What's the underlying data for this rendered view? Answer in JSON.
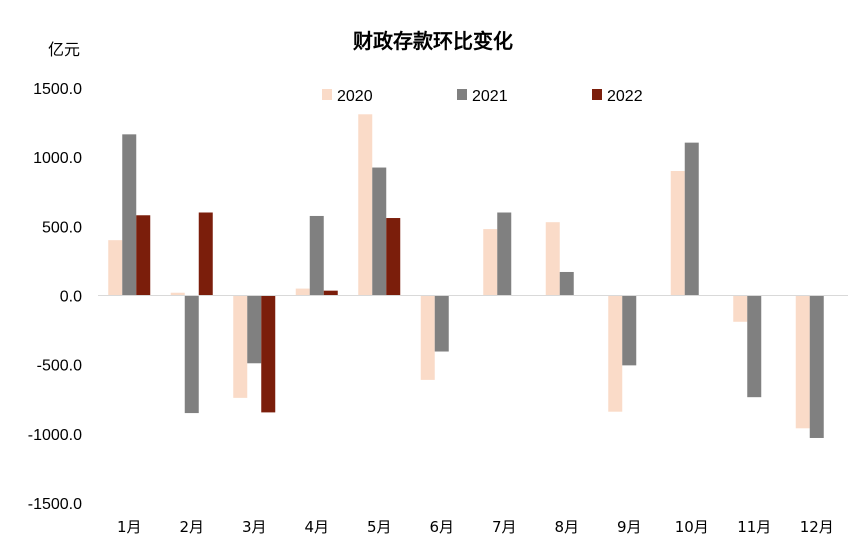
{
  "chart_data": {
    "type": "bar",
    "title": "财政存款环比变化",
    "ylabel": "亿元",
    "xlabel": "",
    "ylim": [
      -1500,
      1500
    ],
    "yticks": [
      "1500.0",
      "1000.0",
      "500.0",
      "0.0",
      "-500.0",
      "-1000.0",
      "-1500.0"
    ],
    "ytick_values": [
      1500,
      1000,
      500,
      0,
      -500,
      -1000,
      -1500
    ],
    "categories": [
      "1月",
      "2月",
      "3月",
      "4月",
      "5月",
      "6月",
      "7月",
      "8月",
      "9月",
      "10月",
      "11月",
      "12月"
    ],
    "series": [
      {
        "name": "2020",
        "color": "#FADBC8",
        "values": [
          400,
          20,
          -740,
          50,
          1310,
          -610,
          480,
          530,
          -840,
          900,
          -190,
          -960
        ]
      },
      {
        "name": "2021",
        "color": "#808080",
        "values": [
          1165,
          -850,
          -490,
          575,
          925,
          -405,
          600,
          170,
          -505,
          1105,
          -735,
          -1030
        ]
      },
      {
        "name": "2022",
        "color": "#7B1E0B",
        "values": [
          580,
          600,
          -845,
          35,
          560,
          null,
          null,
          null,
          null,
          null,
          null,
          null
        ]
      }
    ],
    "legend_position": "top",
    "grid": false
  }
}
